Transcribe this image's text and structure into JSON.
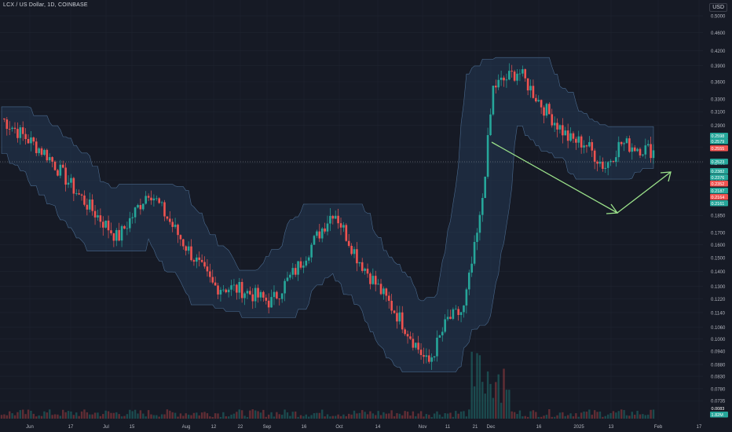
{
  "header": {
    "symbol_line": "LCX / US Dollar, 1D, COINBASE",
    "currency": "USD"
  },
  "colors": {
    "up": "#26a69a",
    "down": "#ef5350",
    "band_fill": "#2a4a6e",
    "band_line": "#4a6a8e",
    "arrow": "#9be28a",
    "grid": "#1f2430",
    "background": "#161a25",
    "axis_text": "#b2b5be"
  },
  "price_tags": [
    {
      "text": "0.2598",
      "color": "#26a69a"
    },
    {
      "text": "0.2579",
      "color": "#26a69a"
    },
    {
      "text": "0.2555",
      "color": "#ef5350"
    },
    {
      "text": "0.2523",
      "color": "#26a69a"
    },
    {
      "text": "0.2382",
      "color": "#26a69a"
    },
    {
      "text": "0.2376",
      "color": "#26a69a"
    },
    {
      "text": "0.2352",
      "color": "#ef5350"
    },
    {
      "text": "0.2187",
      "color": "#26a69a"
    },
    {
      "text": "0.2164",
      "color": "#ef5350"
    },
    {
      "text": "0.2161",
      "color": "#26a69a"
    },
    {
      "text": "0.0083",
      "color": "#161a25"
    },
    {
      "text": "1.82M",
      "color": "#26a69a"
    }
  ],
  "chart_data": {
    "type": "candlestick",
    "title": "LCX / US Dollar, 1D, COINBASE",
    "ylabel": "USD",
    "y_scale": "log",
    "ylim": [
      0.068,
      0.52
    ],
    "y_ticks": [
      "0.5000",
      "0.4600",
      "0.4200",
      "0.3900",
      "0.3600",
      "0.3300",
      "0.3100",
      "0.2900",
      "0.2600",
      "0.2400",
      "0.2200",
      "0.1850",
      "0.1700",
      "0.1600",
      "0.1500",
      "0.1400",
      "0.1300",
      "0.1220",
      "0.1140",
      "0.1060",
      "0.1000",
      "0.0940",
      "0.0880",
      "0.0830",
      "0.0780",
      "0.0735"
    ],
    "x_ticks": [
      "Jun",
      "17",
      "Jul",
      "15",
      "Aug",
      "12",
      "22",
      "Sep",
      "16",
      "Oct",
      "14",
      "Nov",
      "11",
      "21",
      "Dec",
      "16",
      "2025",
      "13",
      "Feb",
      "17"
    ],
    "approx_close_path": [
      [
        "Jun 1",
        0.3
      ],
      [
        "Jun 15",
        0.25
      ],
      [
        "Jun 25",
        0.205
      ],
      [
        "Jul 8",
        0.165
      ],
      [
        "Jul 18",
        0.21
      ],
      [
        "Aug 1",
        0.16
      ],
      [
        "Aug 15",
        0.13
      ],
      [
        "Aug 30",
        0.128
      ],
      [
        "Sep 12",
        0.12
      ],
      [
        "Sep 26",
        0.142
      ],
      [
        "Oct 3",
        0.19
      ],
      [
        "Oct 14",
        0.15
      ],
      [
        "Oct 28",
        0.11
      ],
      [
        "Nov 5",
        0.088
      ],
      [
        "Nov 13",
        0.11
      ],
      [
        "Nov 18",
        0.115
      ],
      [
        "Nov 22",
        0.185
      ],
      [
        "Nov 25",
        0.35
      ],
      [
        "Dec 2",
        0.38
      ],
      [
        "Dec 10",
        0.32
      ],
      [
        "Dec 22",
        0.27
      ],
      [
        "Jan 1",
        0.265
      ],
      [
        "Jan 10",
        0.235
      ],
      [
        "Jan 18",
        0.265
      ],
      [
        "Jan 28",
        0.255
      ]
    ],
    "annotations": [
      "downward trend arrow from late Nov to mid Jan",
      "upward arrow from mid Jan toward Feb"
    ],
    "indicators": [
      "Bollinger-style envelope band",
      "volume histogram"
    ],
    "grid": true
  }
}
